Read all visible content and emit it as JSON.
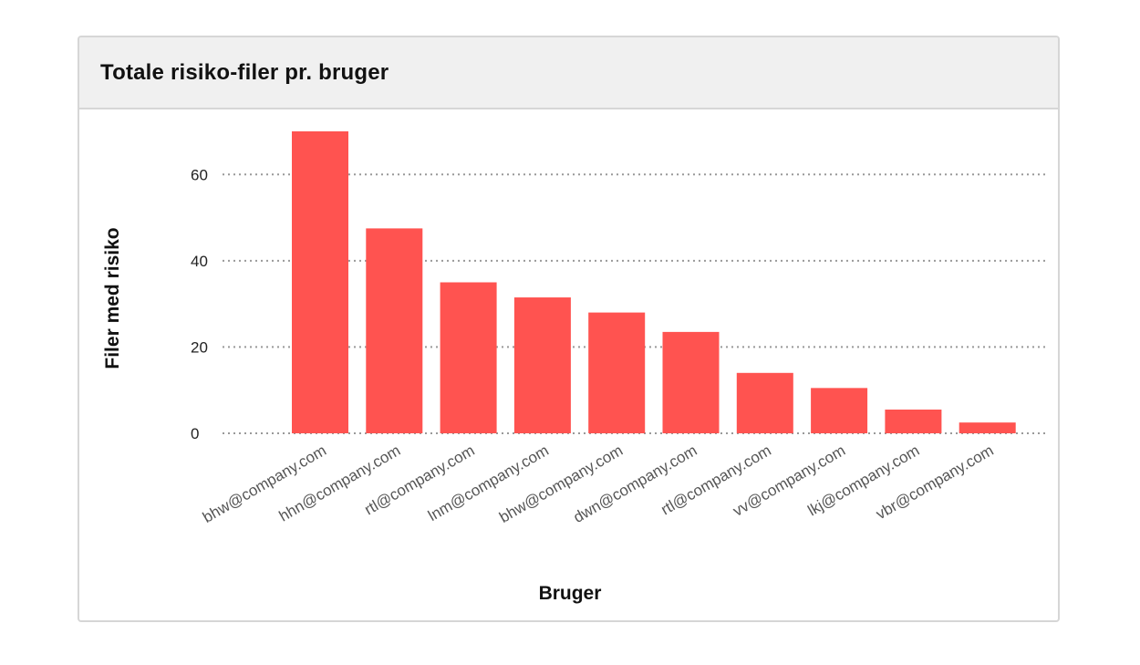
{
  "card": {
    "title": "Totale risiko-filer pr. bruger"
  },
  "chart_data": {
    "type": "bar",
    "title": "Totale risiko-filer pr. bruger",
    "xlabel": "Bruger",
    "ylabel": "Filer med risiko",
    "categories": [
      "bhw@company.com",
      "hhn@company.com",
      "rtl@company.com",
      "lnm@company.com",
      "bhw@company.com",
      "dwn@company.com",
      "rtl@company.com",
      "vv@company.com",
      "lkj@company.com",
      "vbr@company.com"
    ],
    "values": [
      70,
      47.5,
      35,
      31.5,
      28,
      23.5,
      14,
      10.5,
      5.5,
      2.5
    ],
    "ylim": [
      0,
      70
    ],
    "yticks": [
      0,
      20,
      40,
      60
    ],
    "grid": true,
    "colors": {
      "bar": "#ff5350",
      "grid": "#999999"
    }
  }
}
